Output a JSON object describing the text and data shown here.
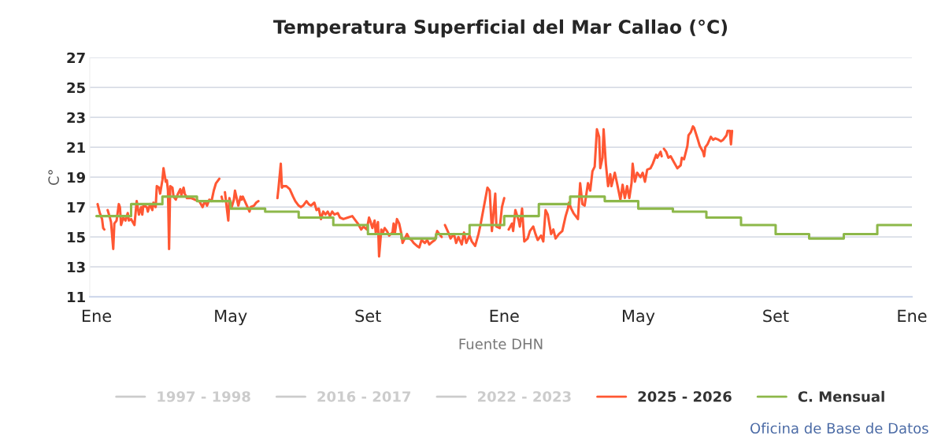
{
  "chart_data": {
    "type": "line",
    "title": "Temperatura Superficial del Mar Callao (°C)",
    "ylabel": "C°",
    "xlabel": "Fuente DHN",
    "annotations": [
      "Oficina de Base de Datos"
    ],
    "xlim": [
      "2024-12-26",
      "2027-01-01"
    ],
    "xticks": [
      {
        "value": "2025-01-01",
        "label": "Ene"
      },
      {
        "value": "2025-05-01",
        "label": "May"
      },
      {
        "value": "2025-09-01",
        "label": "Set"
      },
      {
        "value": "2026-01-01",
        "label": "Ene"
      },
      {
        "value": "2026-05-01",
        "label": "May"
      },
      {
        "value": "2026-09-01",
        "label": "Set"
      },
      {
        "value": "2027-01-01",
        "label": "Ene"
      }
    ],
    "ylim": [
      11,
      27
    ],
    "yticks": [
      11,
      13,
      15,
      17,
      19,
      21,
      23,
      25,
      27
    ],
    "grid": "y",
    "legend": "bottom",
    "line_style": "solid",
    "series": [
      {
        "name": "1997 - 1998",
        "color": "#cccccc"
      },
      {
        "name": "2016 - 2017",
        "color": "#cccccc"
      },
      {
        "name": "2022 - 2023",
        "color": "#cccccc"
      },
      {
        "name": "2025 - 2026",
        "color": "#ff5733",
        "x": [
          "2025-01-02",
          "2025-01-04",
          "2025-01-06",
          "2025-01-07",
          "2025-01-08",
          "2025-01-09",
          "2025-01-11",
          "2025-01-13",
          "2025-01-14",
          "2025-01-16",
          "2025-01-17",
          "2025-01-19",
          "2025-01-21",
          "2025-01-22",
          "2025-01-23",
          "2025-01-25",
          "2025-01-27",
          "2025-01-29",
          "2025-01-30",
          "2025-02-01",
          "2025-02-04",
          "2025-02-06",
          "2025-02-08",
          "2025-02-10",
          "2025-02-11",
          "2025-02-12",
          "2025-02-15",
          "2025-02-16",
          "2025-02-18",
          "2025-02-20",
          "2025-02-21",
          "2025-02-23",
          "2025-02-24",
          "2025-02-26",
          "2025-02-27",
          "2025-03-01",
          "2025-03-02",
          "2025-03-04",
          "2025-03-05",
          "2025-03-06",
          "2025-03-07",
          "2025-03-08",
          "2025-03-10",
          "2025-03-11",
          "2025-03-13",
          "2025-03-15",
          "2025-03-17",
          "2025-03-18",
          "2025-03-20",
          "2025-03-21",
          "2025-03-23",
          "2025-03-27",
          "2025-03-30",
          "2025-04-03",
          "2025-04-06",
          "2025-04-08",
          "2025-04-10",
          "2025-04-12",
          "2025-04-14",
          "2025-04-16",
          "2025-04-18",
          "2025-04-21",
          "2025-04-22",
          "2025-04-23",
          "2025-04-24",
          "2025-04-25",
          "2025-04-26",
          "2025-04-29",
          "2025-04-30",
          "2025-05-02",
          "2025-05-04",
          "2025-05-05",
          "2025-05-08",
          "2025-05-10",
          "2025-05-11",
          "2025-05-12",
          "2025-05-15",
          "2025-05-18",
          "2025-05-19",
          "2025-05-22",
          "2025-05-24",
          "2025-05-26",
          "2025-05-31",
          "2025-06-12",
          "2025-06-13",
          "2025-06-15",
          "2025-06-16",
          "2025-06-17",
          "2025-06-20",
          "2025-06-23",
          "2025-06-26",
          "2025-06-28",
          "2025-07-01",
          "2025-07-03",
          "2025-07-05",
          "2025-07-08",
          "2025-07-10",
          "2025-07-12",
          "2025-07-15",
          "2025-07-17",
          "2025-07-19",
          "2025-07-21",
          "2025-07-23",
          "2025-07-25",
          "2025-07-27",
          "2025-07-29",
          "2025-07-31",
          "2025-08-02",
          "2025-08-05",
          "2025-08-07",
          "2025-08-10",
          "2025-08-14",
          "2025-08-18",
          "2025-08-21",
          "2025-08-23",
          "2025-08-26",
          "2025-08-28",
          "2025-08-31",
          "2025-09-02",
          "2025-09-03",
          "2025-09-05",
          "2025-09-07",
          "2025-09-08",
          "2025-09-10",
          "2025-09-11",
          "2025-09-13",
          "2025-09-14",
          "2025-09-16",
          "2025-09-18",
          "2025-09-20",
          "2025-09-23",
          "2025-09-24",
          "2025-09-25",
          "2025-09-27",
          "2025-09-29",
          "2025-10-01",
          "2025-10-02",
          "2025-10-04",
          "2025-10-06",
          "2025-10-08",
          "2025-10-10",
          "2025-10-12",
          "2025-10-15",
          "2025-10-17",
          "2025-10-19",
          "2025-10-22",
          "2025-10-24",
          "2025-10-26",
          "2025-10-29",
          "2025-10-31",
          "2025-11-02",
          "2025-11-05",
          "2025-11-06",
          "2025-11-08",
          "2025-11-09",
          "2025-11-12",
          "2025-11-14",
          "2025-11-17",
          "2025-11-19",
          "2025-11-21",
          "2025-11-24",
          "2025-11-26",
          "2025-11-28",
          "2025-12-01",
          "2025-12-03",
          "2025-12-06",
          "2025-12-09",
          "2025-12-11",
          "2025-12-12",
          "2025-12-15",
          "2025-12-17",
          "2025-12-19",
          "2025-12-21",
          "2025-12-24",
          "2025-12-25",
          "2025-12-28",
          "2025-12-30",
          "2026-01-01",
          "2026-01-03",
          "2026-01-05",
          "2026-01-08",
          "2026-01-09",
          "2026-01-11",
          "2026-01-14",
          "2026-01-15",
          "2026-01-17",
          "2026-01-19",
          "2026-01-22",
          "2026-01-24",
          "2026-01-27",
          "2026-01-29",
          "2026-01-31",
          "2026-02-03",
          "2026-02-05",
          "2026-02-07",
          "2026-02-09",
          "2026-02-12",
          "2026-02-14",
          "2026-02-16",
          "2026-02-19",
          "2026-02-22",
          "2026-02-25",
          "2026-02-27",
          "2026-02-28",
          "2026-03-02",
          "2026-03-04",
          "2026-03-06",
          "2026-03-08",
          "2026-03-10",
          "2026-03-12",
          "2026-03-14",
          "2026-03-17",
          "2026-03-19",
          "2026-03-21",
          "2026-03-23",
          "2026-03-25",
          "2026-03-27",
          "2026-03-28",
          "2026-03-30",
          "2026-03-31",
          "2026-04-02",
          "2026-04-04",
          "2026-04-06",
          "2026-04-07",
          "2026-04-10",
          "2026-04-12",
          "2026-04-15",
          "2026-04-17",
          "2026-04-19",
          "2026-04-21",
          "2026-04-23",
          "2026-04-25",
          "2026-04-26",
          "2026-04-28",
          "2026-04-30",
          "2026-05-03",
          "2026-05-05",
          "2026-05-07",
          "2026-05-09",
          "2026-05-12",
          "2026-05-14",
          "2026-05-17",
          "2026-05-18",
          "2026-05-21",
          "2026-05-22",
          "2026-05-23",
          "2026-05-24",
          "2026-05-26",
          "2026-05-28",
          "2026-05-30",
          "2026-06-02",
          "2026-06-05",
          "2026-06-08",
          "2026-06-09",
          "2026-06-11",
          "2026-06-14",
          "2026-06-15",
          "2026-06-17",
          "2026-06-19",
          "2026-06-20",
          "2026-06-23",
          "2026-06-25",
          "2026-06-28",
          "2026-06-29",
          "2026-06-30",
          "2026-07-02",
          "2026-07-05",
          "2026-07-07",
          "2026-07-09",
          "2026-07-12",
          "2026-07-14",
          "2026-07-16",
          "2026-07-19",
          "2026-07-20",
          "2026-07-22",
          "2026-07-23",
          "2026-07-24"
        ],
        "values": [
          17.2,
          16.6,
          16.2,
          15.6,
          15.5,
          null,
          16.8,
          16.3,
          16.0,
          14.2,
          15.9,
          16.1,
          17.2,
          17.0,
          15.8,
          16.3,
          16.1,
          16.6,
          16.1,
          16.2,
          15.8,
          17.4,
          16.5,
          17.0,
          16.5,
          17.1,
          17.0,
          16.7,
          17.2,
          16.8,
          17.3,
          17.0,
          18.4,
          18.3,
          17.9,
          18.8,
          19.6,
          18.7,
          18.8,
          18.1,
          14.2,
          18.4,
          18.3,
          17.7,
          17.5,
          17.9,
          18.2,
          17.8,
          18.3,
          17.9,
          17.6,
          17.6,
          17.5,
          17.4,
          17.0,
          17.4,
          17.1,
          17.5,
          17.4,
          18.1,
          18.6,
          18.9,
          null,
          17.7,
          17.4,
          null,
          18.0,
          16.1,
          17.6,
          17.0,
          17.5,
          18.1,
          17.1,
          17.7,
          17.5,
          17.7,
          17.2,
          16.7,
          17.0,
          17.1,
          17.3,
          17.4,
          null,
          17.6,
          18.3,
          19.9,
          18.3,
          18.4,
          18.4,
          18.2,
          17.7,
          17.4,
          17.1,
          17.0,
          17.1,
          17.4,
          17.2,
          17.1,
          17.3,
          16.8,
          16.9,
          16.2,
          16.7,
          16.5,
          16.7,
          16.4,
          16.7,
          16.5,
          16.6,
          16.3,
          16.2,
          16.3,
          16.4,
          16.1,
          15.9,
          15.5,
          15.7,
          15.5,
          16.3,
          16.1,
          15.6,
          16.1,
          15.3,
          16.0,
          13.7,
          15.5,
          15.2,
          15.6,
          15.4,
          15.1,
          15.3,
          15.9,
          15.2,
          16.2,
          15.9,
          15.2,
          14.6,
          14.9,
          15.2,
          14.9,
          14.8,
          14.6,
          14.4,
          14.3,
          14.8,
          14.6,
          14.8,
          14.5,
          14.7,
          14.8,
          15.4,
          15.1,
          15.0,
          null,
          15.8,
          15.3,
          14.9,
          15.2,
          14.6,
          15.0,
          14.5,
          15.3,
          14.6,
          15.1,
          14.7,
          14.4,
          15.2,
          15.9,
          16.3,
          17.5,
          18.3,
          18.1,
          15.4,
          17.9,
          15.7,
          15.6,
          17.0,
          17.6,
          null,
          15.5,
          15.9,
          15.4,
          16.8,
          16.1,
          15.7,
          16.9,
          14.7,
          14.9,
          15.4,
          15.7,
          15.2,
          14.8,
          15.1,
          14.7,
          16.8,
          16.5,
          15.2,
          15.5,
          14.9,
          15.2,
          15.4,
          16.4,
          16.9,
          17.3,
          16.9,
          16.6,
          16.4,
          16.2,
          18.6,
          17.2,
          17.1,
          18.6,
          18.1,
          19.4,
          19.7,
          22.2,
          21.7,
          19.6,
          20.3,
          22.2,
          19.9,
          18.4,
          19.2,
          18.4,
          19.3,
          18.6,
          17.5,
          18.5,
          17.6,
          18.4,
          17.6,
          18.6,
          19.9,
          18.7,
          19.3,
          19.0,
          19.3,
          18.7,
          19.5,
          19.6,
          19.9,
          20.5,
          20.3,
          20.7,
          20.4,
          null,
          20.9,
          20.7,
          20.3,
          20.4,
          20.0,
          19.6,
          19.8,
          20.3,
          20.2,
          21.1,
          21.8,
          22.0,
          22.4,
          22.3,
          21.6,
          21.1,
          20.7,
          20.4,
          21.0,
          21.2,
          21.7,
          21.5,
          21.6,
          21.5,
          21.4,
          21.5,
          21.8,
          22.1,
          22.1,
          21.2,
          22.1
        ]
      },
      {
        "name": "C. Mensual",
        "color": "#8db84a",
        "type": "step",
        "x": [
          "2025-01-01",
          "2025-02-01",
          "2025-03-01",
          "2025-04-01",
          "2025-05-01",
          "2025-06-01",
          "2025-07-01",
          "2025-08-01",
          "2025-09-01",
          "2025-10-01",
          "2025-11-01",
          "2025-12-01",
          "2026-01-01",
          "2026-02-01",
          "2026-03-01",
          "2026-04-01",
          "2026-05-01",
          "2026-06-01",
          "2026-07-01",
          "2026-08-01",
          "2026-09-01",
          "2026-10-01",
          "2026-11-01",
          "2026-12-01",
          "2027-01-01"
        ],
        "values": [
          16.4,
          17.2,
          17.7,
          17.4,
          16.9,
          16.7,
          16.3,
          15.8,
          15.2,
          14.9,
          15.2,
          15.8,
          16.4,
          17.2,
          17.7,
          17.4,
          16.9,
          16.7,
          16.3,
          15.8,
          15.2,
          14.9,
          15.2,
          15.8,
          15.8
        ]
      }
    ]
  }
}
